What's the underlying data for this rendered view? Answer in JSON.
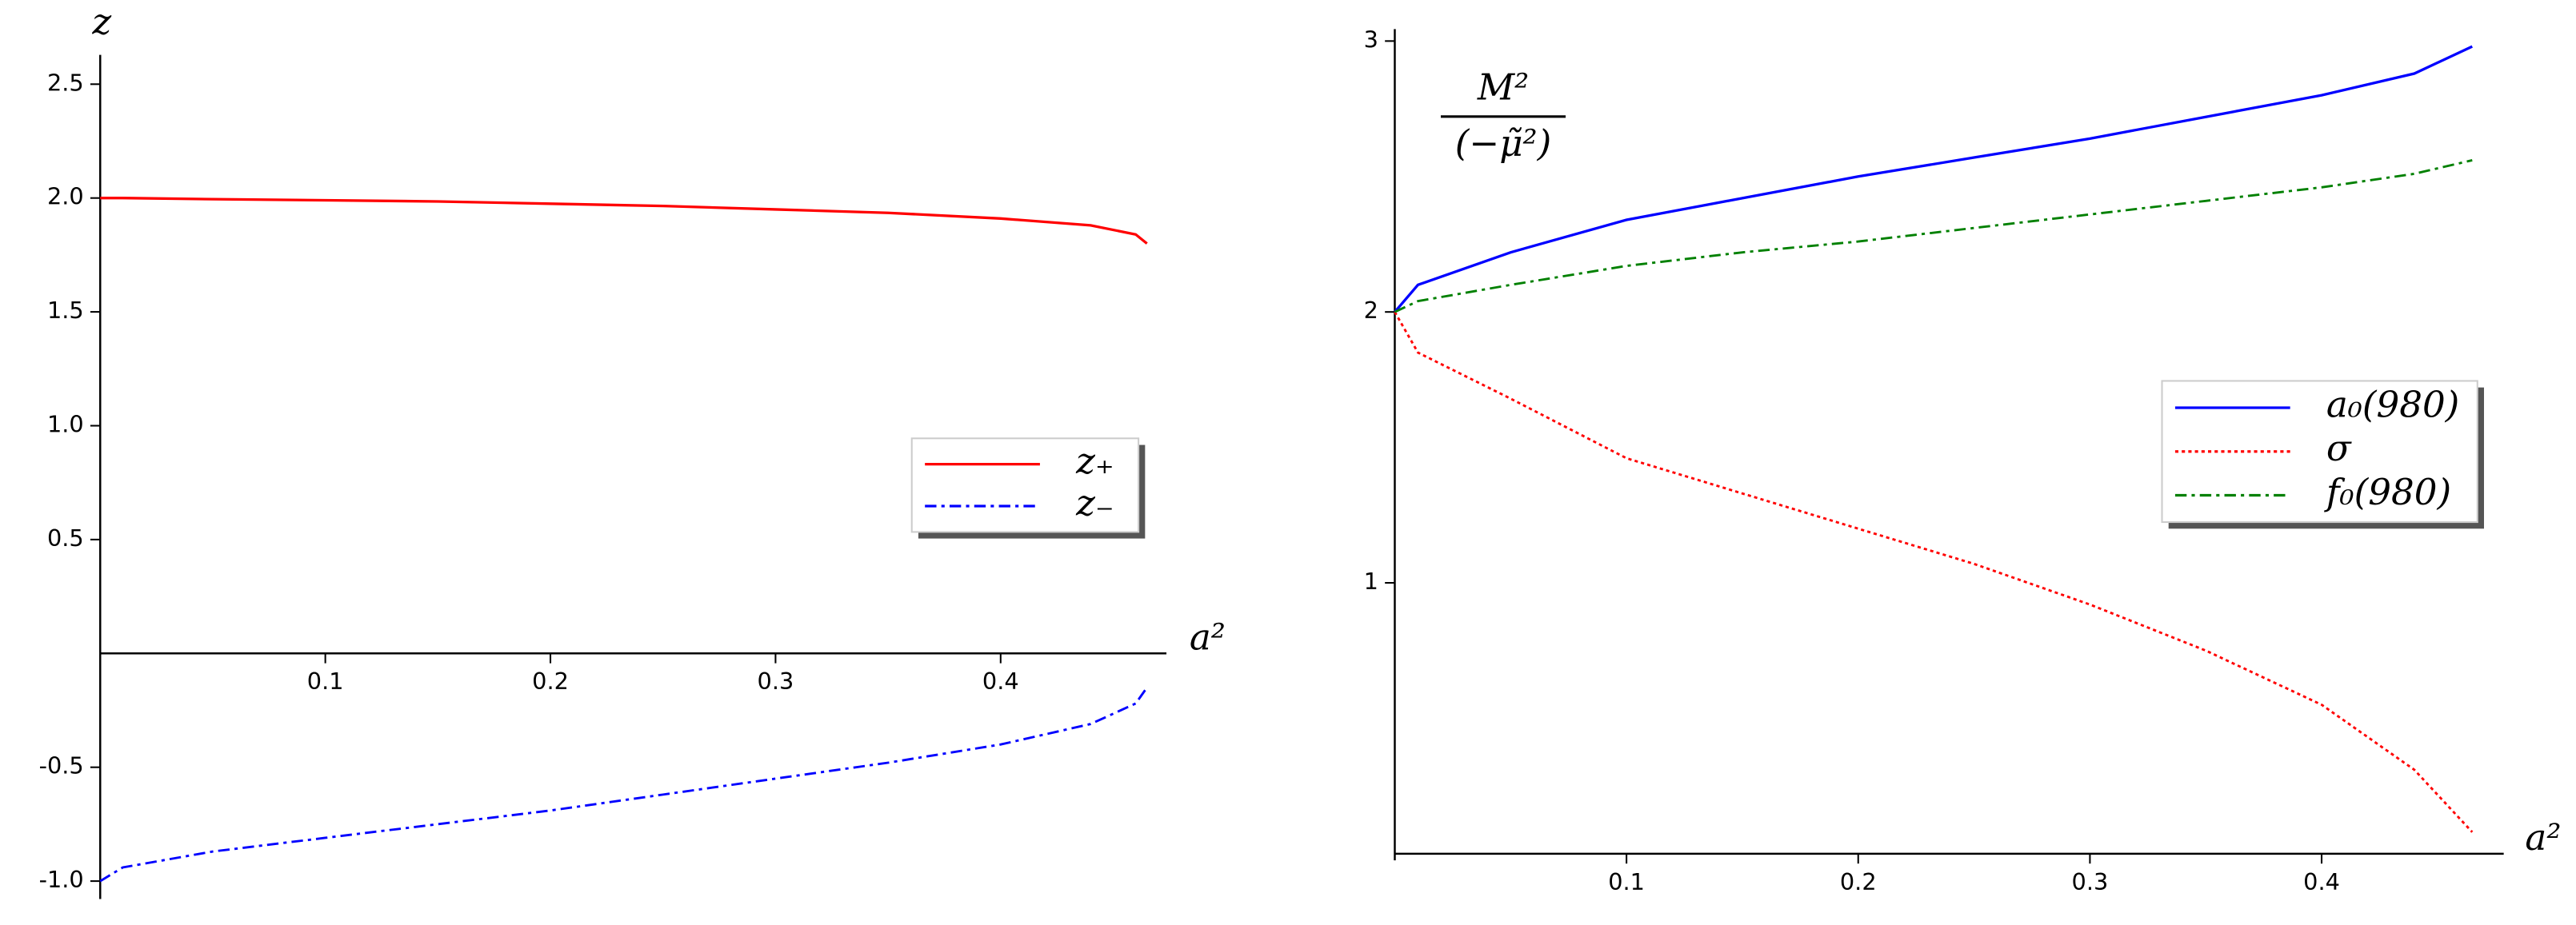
{
  "chart_data": [
    {
      "type": "line",
      "xlabel": "a²",
      "ylabel": "z",
      "x": [
        0,
        0.01,
        0.05,
        0.1,
        0.15,
        0.2,
        0.25,
        0.3,
        0.35,
        0.4,
        0.44,
        0.46,
        0.465
      ],
      "series": [
        {
          "name": "z₊",
          "color": "#ff0000",
          "linestyle": "solid",
          "values": [
            2.0,
            2.0,
            1.995,
            1.99,
            1.985,
            1.975,
            1.965,
            1.95,
            1.935,
            1.91,
            1.88,
            1.84,
            1.8
          ]
        },
        {
          "name": "z₋",
          "color": "#0000ff",
          "linestyle": "dashdot",
          "values": [
            -1.0,
            -0.94,
            -0.87,
            -0.81,
            -0.75,
            -0.69,
            -0.62,
            -0.55,
            -0.48,
            -0.4,
            -0.31,
            -0.22,
            -0.15
          ]
        }
      ],
      "xlim": [
        0,
        0.47
      ],
      "ylim": [
        -1.05,
        2.6
      ],
      "xticks": [
        0.1,
        0.2,
        0.3,
        0.4
      ],
      "yticks": [
        {
          "value": -1,
          "label": "-1.0"
        },
        -0.5,
        0.5,
        {
          "value": 1,
          "label": "1.0"
        },
        1.5,
        {
          "value": 2,
          "label": "2.0"
        },
        2.5
      ],
      "legend": "center right"
    },
    {
      "type": "line",
      "xlabel": "a²",
      "ylabel": {
        "numerator": "M²",
        "denominator": "(−μ̃²)"
      },
      "x": [
        0,
        0.01,
        0.05,
        0.1,
        0.15,
        0.2,
        0.25,
        0.3,
        0.35,
        0.4,
        0.44,
        0.465
      ],
      "series": [
        {
          "name": "a₀(980)",
          "color": "#0000ff",
          "linestyle": "solid",
          "values": [
            2.0,
            2.1,
            2.22,
            2.34,
            2.42,
            2.5,
            2.57,
            2.64,
            2.72,
            2.8,
            2.88,
            2.98
          ]
        },
        {
          "name": "σ",
          "color": "#ff0000",
          "linestyle": "dotted",
          "values": [
            2.0,
            1.85,
            1.68,
            1.46,
            1.33,
            1.2,
            1.07,
            0.92,
            0.75,
            0.55,
            0.31,
            0.08
          ]
        },
        {
          "name": "f₀(980)",
          "color": "#008000",
          "linestyle": "dashdot",
          "values": [
            2.0,
            2.04,
            2.1,
            2.17,
            2.22,
            2.26,
            2.31,
            2.36,
            2.41,
            2.46,
            2.51,
            2.56
          ]
        }
      ],
      "xlim": [
        0,
        0.48
      ],
      "ylim": [
        0,
        3.02
      ],
      "xticks": [
        0.1,
        0.2,
        0.3,
        0.4
      ],
      "yticks": [
        1,
        2,
        3
      ],
      "legend": "center right"
    }
  ]
}
